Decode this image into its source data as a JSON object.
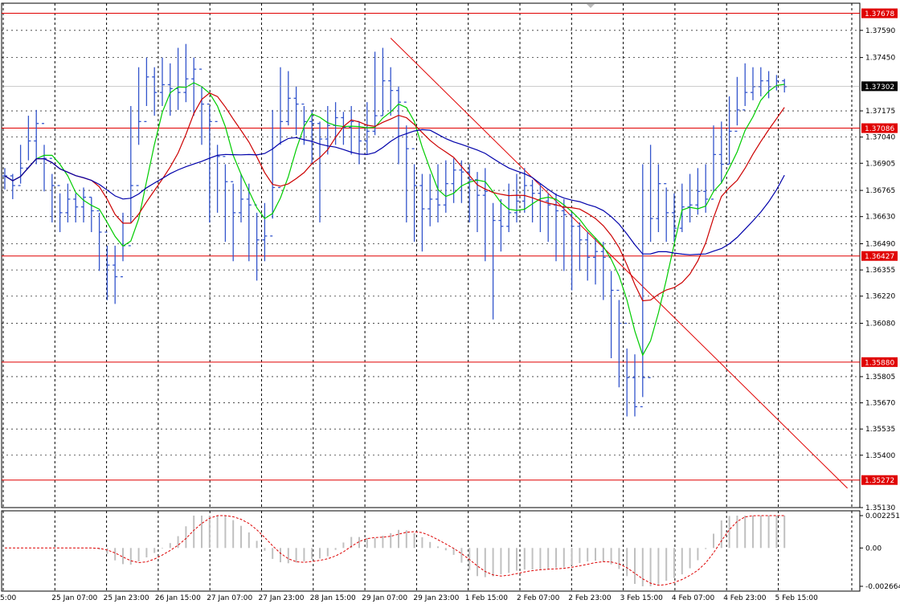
{
  "chart_data": [
    {
      "type": "candlestick",
      "title": "",
      "xlabel": "",
      "ylabel": "",
      "ylim": [
        1.3513,
        1.3773
      ],
      "grid": true,
      "price_ticks": [
        "1.37590",
        "1.37450",
        "1.37175",
        "1.37040",
        "1.36905",
        "1.36765",
        "1.36630",
        "1.36490",
        "1.36355",
        "1.36220",
        "1.36080",
        "1.35805",
        "1.35670",
        "1.35535",
        "1.35400",
        "1.35130"
      ],
      "time_ticks": [
        "5:00",
        "25 Jan 07:00",
        "25 Jan 23:00",
        "26 Jan 15:00",
        "27 Jan 07:00",
        "27 Jan 23:00",
        "28 Jan 15:00",
        "29 Jan 07:00",
        "29 Jan 23:00",
        "1 Feb 15:00",
        "2 Feb 07:00",
        "2 Feb 23:00",
        "3 Feb 15:00",
        "4 Feb 07:00",
        "4 Feb 23:00",
        "5 Feb 15:00"
      ],
      "current_price": "1.37302",
      "close_series": [
        1.3684,
        1.3679,
        1.3688,
        1.3702,
        1.3711,
        1.3693,
        1.3679,
        1.3665,
        1.3672,
        1.3668,
        1.3673,
        1.3666,
        1.3655,
        1.3638,
        1.3632,
        1.3648,
        1.3679,
        1.3712,
        1.3735,
        1.3727,
        1.3731,
        1.3729,
        1.3727,
        1.3734,
        1.3739,
        1.3721,
        1.3712,
        1.3694,
        1.3681,
        1.3665,
        1.3672,
        1.3669,
        1.3651,
        1.3653,
        1.3678,
        1.3712,
        1.3724,
        1.3721,
        1.3712,
        1.3711,
        1.3703,
        1.371,
        1.3714,
        1.3709,
        1.3712,
        1.3702,
        1.3707,
        1.3715,
        1.3733,
        1.3728,
        1.3722,
        1.3698,
        1.3679,
        1.3667,
        1.3672,
        1.3669,
        1.368,
        1.3687,
        1.3686,
        1.3682,
        1.3674,
        1.3676,
        1.3661,
        1.3658,
        1.3665,
        1.3671,
        1.3679,
        1.3675,
        1.3671,
        1.3669,
        1.3666,
        1.3664,
        1.3658,
        1.3651,
        1.3642,
        1.3645,
        1.3642,
        1.3625,
        1.3608,
        1.358,
        1.3565,
        1.358,
        1.3662,
        1.368,
        1.3665,
        1.3657,
        1.3668,
        1.3669,
        1.3676,
        1.3672,
        1.3695,
        1.369,
        1.3707,
        1.3718,
        1.3727,
        1.373,
        1.3733,
        1.373,
        1.3733,
        1.373
      ],
      "high_series": [
        1.3688,
        1.3685,
        1.37,
        1.3715,
        1.3718,
        1.37,
        1.3685,
        1.3675,
        1.368,
        1.3675,
        1.3678,
        1.3673,
        1.3665,
        1.3648,
        1.3648,
        1.3665,
        1.372,
        1.374,
        1.3745,
        1.374,
        1.3745,
        1.3742,
        1.375,
        1.3752,
        1.3745,
        1.373,
        1.372,
        1.37,
        1.369,
        1.368,
        1.3685,
        1.368,
        1.3665,
        1.367,
        1.3718,
        1.374,
        1.3738,
        1.373,
        1.372,
        1.3718,
        1.3712,
        1.372,
        1.3722,
        1.3717,
        1.372,
        1.3712,
        1.3722,
        1.3748,
        1.375,
        1.374,
        1.373,
        1.371,
        1.369,
        1.3685,
        1.3685,
        1.369,
        1.3692,
        1.3693,
        1.3692,
        1.369,
        1.3686,
        1.3688,
        1.367,
        1.3672,
        1.368,
        1.3685,
        1.3688,
        1.3682,
        1.368,
        1.3675,
        1.3675,
        1.3672,
        1.3665,
        1.366,
        1.3655,
        1.3652,
        1.365,
        1.3635,
        1.362,
        1.3595,
        1.3592,
        1.369,
        1.37,
        1.369,
        1.3678,
        1.3675,
        1.368,
        1.3685,
        1.3688,
        1.369,
        1.371,
        1.3712,
        1.3725,
        1.3735,
        1.3742,
        1.374,
        1.374,
        1.3738,
        1.3736,
        1.3734
      ],
      "low_series": [
        1.3677,
        1.3672,
        1.368,
        1.3692,
        1.369,
        1.3676,
        1.366,
        1.3655,
        1.366,
        1.366,
        1.366,
        1.3655,
        1.3635,
        1.362,
        1.3618,
        1.364,
        1.366,
        1.37,
        1.372,
        1.3715,
        1.372,
        1.3715,
        1.3718,
        1.3722,
        1.3715,
        1.37,
        1.366,
        1.3665,
        1.365,
        1.364,
        1.366,
        1.364,
        1.363,
        1.364,
        1.3662,
        1.37,
        1.371,
        1.3705,
        1.37,
        1.369,
        1.366,
        1.3695,
        1.37,
        1.37,
        1.3695,
        1.369,
        1.3695,
        1.3705,
        1.3715,
        1.3715,
        1.369,
        1.366,
        1.365,
        1.3645,
        1.3658,
        1.366,
        1.3665,
        1.367,
        1.367,
        1.366,
        1.3655,
        1.364,
        1.361,
        1.3645,
        1.3655,
        1.366,
        1.3665,
        1.366,
        1.3655,
        1.365,
        1.364,
        1.3635,
        1.3625,
        1.3635,
        1.363,
        1.3628,
        1.362,
        1.359,
        1.3575,
        1.356,
        1.356,
        1.357,
        1.365,
        1.3655,
        1.365,
        1.365,
        1.3655,
        1.366,
        1.3664,
        1.3665,
        1.3676,
        1.368,
        1.369,
        1.371,
        1.372,
        1.3723,
        1.3725,
        1.3724,
        1.3728,
        1.3727
      ],
      "moving_averages": [
        {
          "color": "#00cc00",
          "period": 5
        },
        {
          "color": "#cc0000",
          "period": 10
        },
        {
          "color": "#0000aa",
          "period": 20
        }
      ],
      "levels": [
        {
          "value": "1.37678",
          "price": 1.37678
        },
        {
          "value": "1.37086",
          "price": 1.37086
        },
        {
          "value": "1.36427",
          "price": 1.36427
        },
        {
          "value": "1.35880",
          "price": 1.3588
        },
        {
          "value": "1.35272",
          "price": 1.35272
        }
      ],
      "trendline": {
        "from": {
          "candle": 49,
          "price": 1.3755
        },
        "to": {
          "candle": 107,
          "price": 1.3523
        }
      },
      "colors": {
        "candle": "#3355cc",
        "grid": "#000000",
        "level": "#e00000",
        "label_bg": "#e00000",
        "current_bg": "#000000"
      }
    },
    {
      "type": "histogram",
      "title": "",
      "ylim": [
        -0.002664,
        0.002251
      ],
      "ticks": [
        "0.002251",
        "0.00",
        "-0.002664"
      ],
      "colors": {
        "bars": "#c0c0c0",
        "signal": "#dd0000"
      }
    }
  ]
}
